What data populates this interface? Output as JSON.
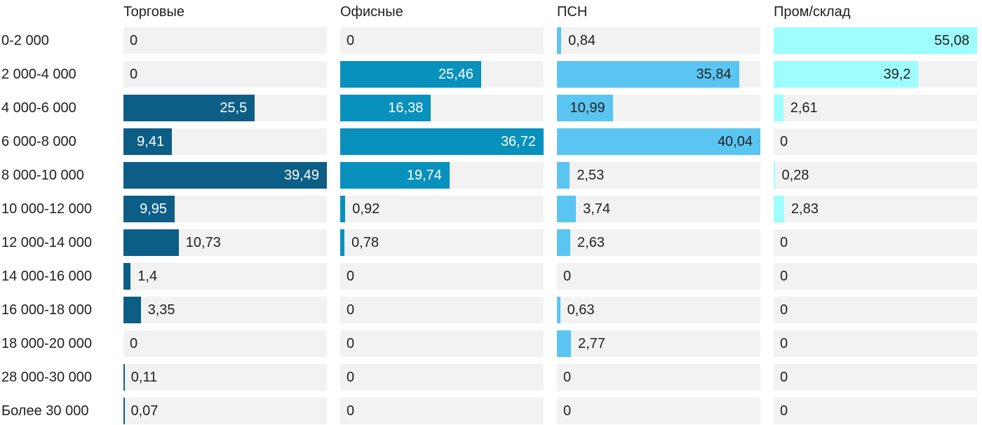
{
  "chart_data": {
    "type": "bar",
    "orientation": "horizontal",
    "scaling": "per-column-max",
    "decimal_separator": ",",
    "grid": false,
    "track_color": "#f2f2f2",
    "text_color": "#1f1f1f",
    "categories": [
      "0-2 000",
      "2 000-4 000",
      "4 000-6 000",
      "6 000-8 000",
      "8 000-10 000",
      "10 000-12 000",
      "12 000-14 000",
      "14 000-16 000",
      "16 000-18 000",
      "18 000-20 000",
      "28 000-30 000",
      "Более 30 000"
    ],
    "series": [
      {
        "name": "Торговые",
        "color": "#0d5e87",
        "inside_label_color": "#ffffff",
        "values": [
          0,
          0,
          25.5,
          9.41,
          39.49,
          9.95,
          10.73,
          1.4,
          3.35,
          0,
          0.11,
          0.07
        ],
        "labels": [
          "0",
          "0",
          "25,5",
          "9,41",
          "39,49",
          "9,95",
          "10,73",
          "1,4",
          "3,35",
          "0",
          "0,11",
          "0,07"
        ],
        "label_inside": [
          false,
          false,
          true,
          true,
          true,
          true,
          false,
          false,
          false,
          false,
          false,
          false
        ]
      },
      {
        "name": "Офисные",
        "color": "#0991bd",
        "inside_label_color": "#ffffff",
        "values": [
          0,
          25.46,
          16.38,
          36.72,
          19.74,
          0.92,
          0.78,
          0,
          0,
          0,
          0,
          0
        ],
        "labels": [
          "0",
          "25,46",
          "16,38",
          "36,72",
          "19,74",
          "0,92",
          "0,78",
          "0",
          "0",
          "0",
          "0",
          "0"
        ],
        "label_inside": [
          false,
          true,
          true,
          true,
          true,
          false,
          false,
          false,
          false,
          false,
          false,
          false
        ]
      },
      {
        "name": "ПСН",
        "color": "#5bc5f1",
        "inside_label_color": "#1f1f1f",
        "values": [
          0.84,
          35.84,
          10.99,
          40.04,
          2.53,
          3.74,
          2.63,
          0,
          0.63,
          2.77,
          0,
          0
        ],
        "labels": [
          "0,84",
          "35,84",
          "10,99",
          "40,04",
          "2,53",
          "3,74",
          "2,63",
          "0",
          "0,63",
          "2,77",
          "0",
          "0"
        ],
        "label_inside": [
          false,
          true,
          true,
          true,
          false,
          false,
          false,
          false,
          false,
          false,
          false,
          false
        ]
      },
      {
        "name": "Пром/склад",
        "color": "#9efdfd",
        "inside_label_color": "#1f1f1f",
        "values": [
          55.08,
          39.2,
          2.61,
          0,
          0.28,
          2.83,
          0,
          0,
          0,
          0,
          0,
          0
        ],
        "labels": [
          "55,08",
          "39,2",
          "2,61",
          "0",
          "0,28",
          "2,83",
          "0",
          "0",
          "0",
          "0",
          "0",
          "0"
        ],
        "label_inside": [
          true,
          true,
          false,
          false,
          false,
          false,
          false,
          false,
          false,
          false,
          false,
          false
        ]
      }
    ]
  }
}
